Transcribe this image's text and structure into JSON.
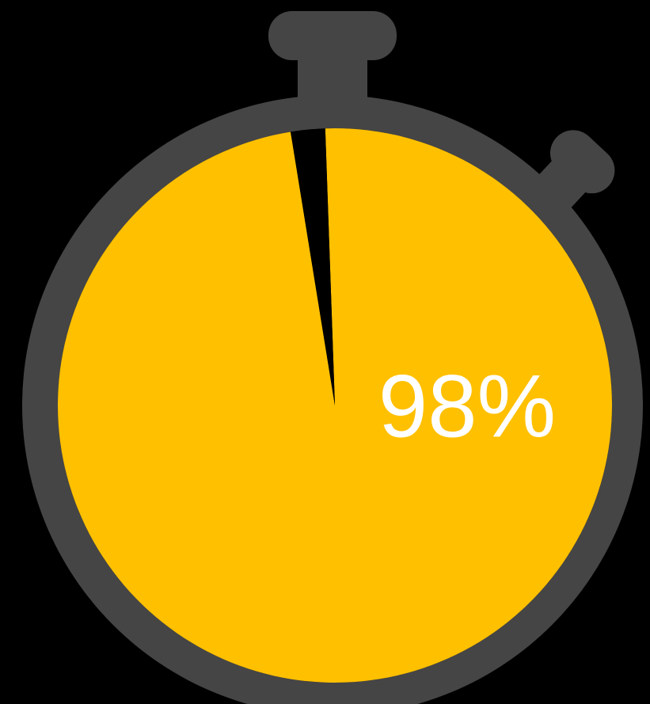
{
  "gauge": {
    "percent_label": "98%",
    "fraction": 0.98
  },
  "colors": {
    "background": "#000000",
    "body": "#454545",
    "fill": "#ffc000",
    "empty": "#000000",
    "text": "#ffffff"
  },
  "icon": "stopwatch-icon"
}
